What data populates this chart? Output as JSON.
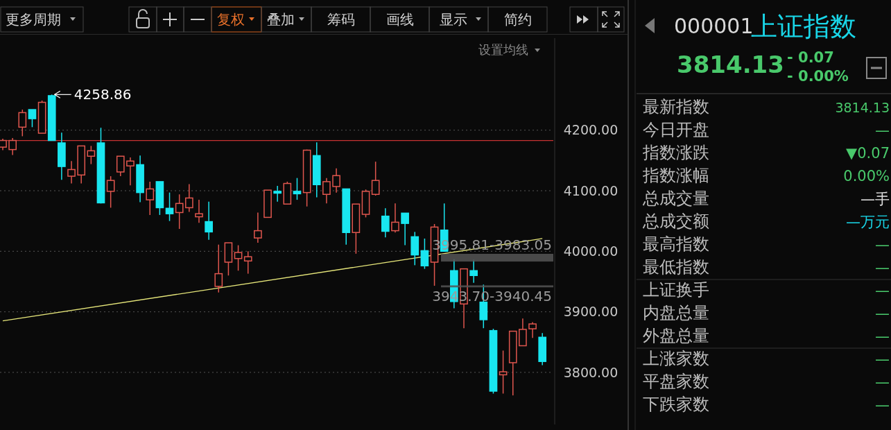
{
  "chart_data": [
    {
      "type": "candlestick",
      "categories": [
        null,
        null,
        null,
        null,
        null,
        null,
        null,
        null,
        null,
        null,
        null,
        null,
        null,
        null,
        null,
        null,
        null,
        null,
        null,
        null,
        null,
        null,
        null,
        null,
        null,
        null,
        null,
        null,
        null,
        null,
        null,
        null,
        null,
        null,
        null,
        null,
        null,
        null,
        null,
        null,
        null,
        null,
        null,
        null,
        null,
        null,
        null,
        null,
        null,
        null,
        null,
        null,
        null,
        null,
        null,
        null
      ],
      "ohlc": [
        [
          4172,
          4186,
          4167,
          4183
        ],
        [
          4168,
          4187,
          4159,
          4183
        ],
        [
          4205,
          4234,
          4190,
          4229
        ],
        [
          4234,
          4234,
          4205,
          4219
        ],
        [
          4195,
          4249,
          4195,
          4246
        ],
        [
          4257,
          4258.86,
          4183,
          4183
        ],
        [
          4179,
          4196,
          4118,
          4140
        ],
        [
          4124,
          4149,
          4112,
          4135
        ],
        [
          4126,
          4174,
          4112,
          4174
        ],
        [
          4157,
          4174,
          4144,
          4166
        ],
        [
          4179,
          4204,
          4079,
          4080
        ],
        [
          4099,
          4124,
          4072,
          4117
        ],
        [
          4131,
          4157,
          4124,
          4157
        ],
        [
          4141,
          4155,
          4109,
          4149
        ],
        [
          4143,
          4158,
          4081,
          4097
        ],
        [
          4085,
          4115,
          4060,
          4103
        ],
        [
          4115,
          4115,
          4060,
          4072
        ],
        [
          4071,
          4097,
          4050,
          4062
        ],
        [
          4064,
          4094,
          4037,
          4079
        ],
        [
          4072,
          4111,
          4065,
          4088
        ],
        [
          4057,
          4085,
          4047,
          4062
        ],
        [
          4049,
          4082,
          4019,
          4032
        ],
        [
          3942,
          4011,
          3932,
          3963
        ],
        [
          3982,
          4014,
          3960,
          4014
        ],
        [
          3988,
          4010,
          3968,
          3998
        ],
        [
          3984,
          4000,
          3963,
          3991
        ],
        [
          4022,
          4064,
          4014,
          4034
        ],
        [
          4056,
          4101,
          4056,
          4101
        ],
        [
          4099,
          4108,
          4082,
          4096
        ],
        [
          4078,
          4115,
          4078,
          4112
        ],
        [
          4099,
          4121,
          4085,
          4095
        ],
        [
          4097,
          4168,
          4074,
          4167
        ],
        [
          4158,
          4180,
          4089,
          4110
        ],
        [
          4094,
          4121,
          4079,
          4115
        ],
        [
          4107,
          4137,
          4097,
          4125
        ],
        [
          4103,
          4103,
          4011,
          4031
        ],
        [
          4031,
          4078,
          3996,
          4078
        ],
        [
          4061,
          4102,
          4056,
          4099
        ],
        [
          4094,
          4148,
          4092,
          4117
        ],
        [
          4058,
          4071,
          4023,
          4033
        ],
        [
          4034,
          4079,
          4031,
          4048
        ],
        [
          4063,
          4063,
          4010,
          4046
        ],
        [
          4024,
          4032,
          3977,
          3994
        ],
        [
          4001,
          4021,
          3971,
          3976
        ],
        [
          3982,
          4045,
          3943,
          4040
        ],
        [
          4035,
          4079,
          4000,
          4000
        ],
        [
          3968,
          3987,
          3906,
          3917
        ],
        [
          3913,
          3971,
          3873,
          3971
        ],
        [
          3968,
          3986,
          3948,
          3960
        ],
        [
          3916,
          3945,
          3873,
          3887
        ],
        [
          3869,
          3872,
          3765,
          3769
        ],
        [
          3796,
          3836,
          3765,
          3801
        ],
        [
          3816,
          3868,
          3762,
          3868
        ],
        [
          3844,
          3889,
          3844,
          3871
        ],
        [
          3872,
          3883,
          3857,
          3880
        ],
        [
          3858,
          3865,
          3812,
          3818
        ]
      ],
      "colors": [
        "#e0564e",
        "#e0564e",
        "#e0564e",
        "#19e6f0",
        "#e0564e",
        "#19e6f0",
        "#19e6f0",
        "#e0564e",
        "#e0564e",
        "#e0564e",
        "#19e6f0",
        "#e0564e",
        "#e0564e",
        "#e0564e",
        "#19e6f0",
        "#e0564e",
        "#19e6f0",
        "#19e6f0",
        "#e0564e",
        "#e0564e",
        "#e0564e",
        "#19e6f0",
        "#e0564e",
        "#e0564e",
        "#e0564e",
        "#e0564e",
        "#e0564e",
        "#e0564e",
        "#19e6f0",
        "#e0564e",
        "#19e6f0",
        "#e0564e",
        "#19e6f0",
        "#e0564e",
        "#e0564e",
        "#19e6f0",
        "#e0564e",
        "#e0564e",
        "#e0564e",
        "#19e6f0",
        "#e0564e",
        "#19e6f0",
        "#19e6f0",
        "#19e6f0",
        "#e0564e",
        "#19e6f0",
        "#19e6f0",
        "#e0564e",
        "#19e6f0",
        "#19e6f0",
        "#19e6f0",
        "#e0564e",
        "#e0564e",
        "#e0564e",
        "#e0564e",
        "#19e6f0"
      ],
      "series": [
        {
          "type": "line",
          "color": "#e6e67a",
          "values": [
            3885,
            null,
            null,
            null,
            null,
            null,
            null,
            null,
            null,
            null,
            null,
            null,
            null,
            null,
            null,
            null,
            null,
            null,
            null,
            null,
            null,
            null,
            null,
            null,
            null,
            null,
            null,
            null,
            null,
            null,
            null,
            null,
            null,
            null,
            null,
            null,
            null,
            null,
            null,
            null,
            null,
            null,
            null,
            null,
            null,
            null,
            null,
            null,
            null,
            null,
            null,
            null,
            null,
            null,
            null,
            4021
          ]
        }
      ],
      "ylim": [
        3714,
        4352
      ],
      "yticks": [
        {
          "value": 3800,
          "label": "3800.00"
        },
        {
          "value": 3900,
          "label": "3900.00"
        },
        {
          "value": 4000,
          "label": "4000.00"
        },
        {
          "value": 4100,
          "label": "4100.00"
        },
        {
          "value": 4200,
          "label": "4200.00"
        }
      ],
      "grid": "y",
      "ref_lines": [
        {
          "axis": "y",
          "value": 4183,
          "color": "#c83232"
        }
      ],
      "bands": [
        {
          "axis": "y",
          "from": 3983.05,
          "to": 3995.81,
          "label": "3995.81-3983.05",
          "color": "#555555"
        },
        {
          "axis": "y",
          "from": 3940.45,
          "to": 3943.7,
          "label": "3943.70-3940.45",
          "color": "#555555"
        }
      ],
      "annotations": [
        "4258.86",
        "更多周期",
        "复权",
        "叠加",
        "筹码",
        "画线",
        "显示",
        "简约",
        "设置均线"
      ]
    },
    {
      "type": "other",
      "subtitle": "000001",
      "title": "上证指数",
      "annotations": [
        "3814.13",
        "- 0.07",
        "- 0.00%"
      ],
      "categories": [
        "最新指数",
        "今日开盘",
        "指数涨跌",
        "指数涨幅",
        "总成交量",
        "总成交额",
        "最高指数",
        "最低指数",
        "上证换手",
        "内盘总量",
        "外盘总量",
        "上涨家数",
        "平盘家数",
        "下跌家数"
      ],
      "value_labels": [
        "3814.13",
        "—",
        "▼0.07",
        "0.00%",
        "—手",
        "—万元",
        "—",
        "—",
        "—",
        "—",
        "—",
        "—",
        "—",
        "—"
      ]
    }
  ]
}
